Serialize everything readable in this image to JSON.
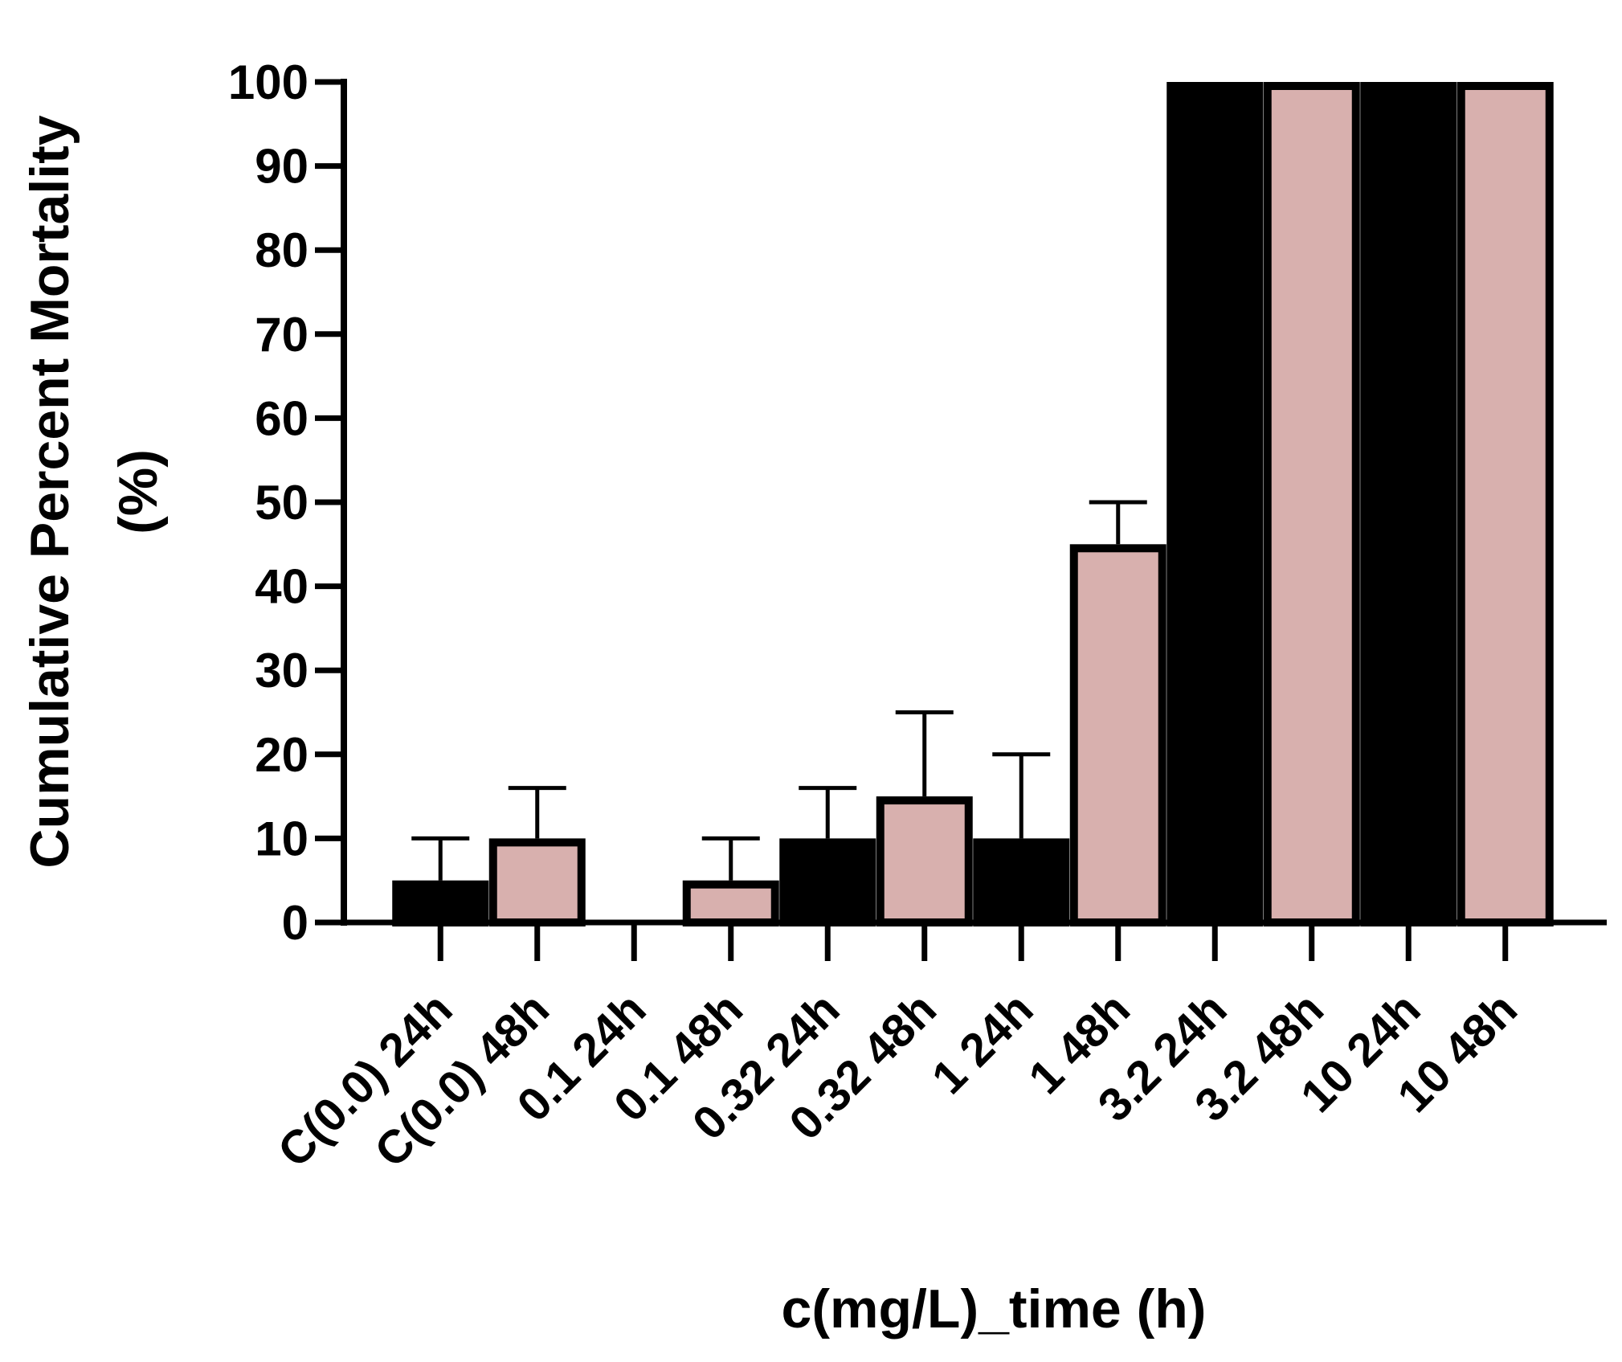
{
  "chart_data": {
    "type": "bar",
    "title": "",
    "xlabel": "c(mg/L)_time (h)",
    "ylabel_lines": [
      "Cumulative Percent Mortality",
      "(%)"
    ],
    "ylim": [
      0,
      100
    ],
    "yticks": [
      0,
      10,
      20,
      30,
      40,
      50,
      60,
      70,
      80,
      90,
      100
    ],
    "grid": false,
    "categories": [
      "C(0.0) 24h",
      "C(0.0) 48h",
      "0.1 24h",
      "0.1 48h",
      "0.32 24h",
      "0.32 48h",
      "1 24h",
      "1 48h",
      "3.2 24h",
      "3.2 48h",
      "10 24h",
      "10 48h"
    ],
    "values": [
      5,
      10,
      0,
      5,
      10,
      15,
      10,
      45,
      100,
      100,
      100,
      100
    ],
    "errors": [
      5,
      6,
      0,
      5,
      6,
      10,
      10,
      5,
      0,
      0,
      0,
      0
    ],
    "series_colors": {
      "24h": "#000000",
      "48h": "#d8b0ae"
    },
    "fills": [
      "#000000",
      "#d8b0ae",
      "#000000",
      "#d8b0ae",
      "#000000",
      "#d8b0ae",
      "#000000",
      "#d8b0ae",
      "#000000",
      "#d8b0ae",
      "#000000",
      "#d8b0ae"
    ]
  }
}
